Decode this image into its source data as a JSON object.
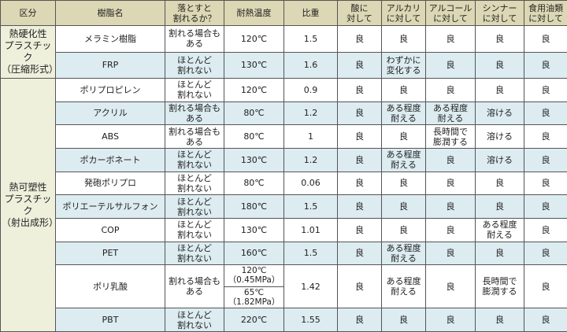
{
  "colors": {
    "header_bg": "#dcd7b4",
    "category_bg": "#eef0dc",
    "stripe_bg": "#dcecf1",
    "border": "#555555"
  },
  "headers": [
    "区分",
    "樹脂名",
    "落とすと\n割れるか？",
    "耐熱温度",
    "比重",
    "酸に\n対して",
    "アルカリ\nに対して",
    "アルコール\nに対して",
    "シンナー\nに対して",
    "食用油類\nに対して"
  ],
  "categories": [
    {
      "label": "熱硬化性\nプラスチック\n（圧縮形式）",
      "rows": 2
    },
    {
      "label": "熱可塑性\nプラスチック\n（射出成形）",
      "rows": 10
    }
  ],
  "rows": [
    {
      "name": "メラミン樹脂",
      "drop": "割れる場合も\nある",
      "heat": "120℃",
      "sg": "1.5",
      "acid": "良",
      "alkali": "良",
      "alcohol": "良",
      "thinner": "良",
      "oil": "良"
    },
    {
      "name": "FRP",
      "drop": "ほとんど\n割れない",
      "heat": "130℃",
      "sg": "1.6",
      "acid": "良",
      "alkali": "わずかに\n変化する",
      "alcohol": "良",
      "thinner": "良",
      "oil": "良"
    },
    {
      "name": "ポリプロピレン",
      "drop": "ほとんど\n割れない",
      "heat": "120℃",
      "sg": "0.9",
      "acid": "良",
      "alkali": "良",
      "alcohol": "良",
      "thinner": "良",
      "oil": "良"
    },
    {
      "name": "アクリル",
      "drop": "割れる場合も\nある",
      "heat": "80℃",
      "sg": "1.2",
      "acid": "良",
      "alkali": "ある程度\n耐える",
      "alcohol": "ある程度\n耐える",
      "thinner": "溶ける",
      "oil": "良"
    },
    {
      "name": "ABS",
      "drop": "割れる場合も\nある",
      "heat": "80℃",
      "sg": "1",
      "acid": "良",
      "alkali": "良",
      "alcohol": "長時間で\n膨潤する",
      "thinner": "溶ける",
      "oil": "良"
    },
    {
      "name": "ポカーボネート",
      "drop": "ほとんど\n割れない",
      "heat": "130℃",
      "sg": "1.2",
      "acid": "良",
      "alkali": "ある程度\n耐える",
      "alcohol": "良",
      "thinner": "溶ける",
      "oil": "良"
    },
    {
      "name": "発砲ポリプロ",
      "drop": "ほとんど\n割れない",
      "heat": "80℃",
      "sg": "0.06",
      "acid": "良",
      "alkali": "良",
      "alcohol": "良",
      "thinner": "良",
      "oil": "良"
    },
    {
      "name": "ポリエーテルサルフォン",
      "drop": "ほとんど\n割れない",
      "heat": "180℃",
      "sg": "1.5",
      "acid": "良",
      "alkali": "良",
      "alcohol": "良",
      "thinner": "良",
      "oil": "良"
    },
    {
      "name": "COP",
      "drop": "ほとんど\n割れない",
      "heat": "130℃",
      "sg": "1.01",
      "acid": "良",
      "alkali": "良",
      "alcohol": "良",
      "thinner": "ある程度\n耐える",
      "oil": "良"
    },
    {
      "name": "PET",
      "drop": "ほとんど\n割れない",
      "heat": "160℃",
      "sg": "1.5",
      "acid": "良",
      "alkali": "ある程度\n耐える",
      "alcohol": "良",
      "thinner": "良",
      "oil": "良"
    },
    {
      "name": "ポリ乳酸",
      "drop": "割れる場合も\nある",
      "heat": "120℃\n（0.45MPa）",
      "heat2": "65℃\n（1.82MPa）",
      "sg": "1.42",
      "acid": "良",
      "alkali": "ある程度\n耐える",
      "alcohol": "良",
      "thinner": "長時間で\n膨潤する",
      "oil": "良"
    },
    {
      "name": "PBT",
      "drop": "ほとんど\n割れない",
      "heat": "220℃",
      "sg": "1.55",
      "acid": "良",
      "alkali": "良",
      "alcohol": "良",
      "thinner": "良",
      "oil": "良"
    }
  ]
}
